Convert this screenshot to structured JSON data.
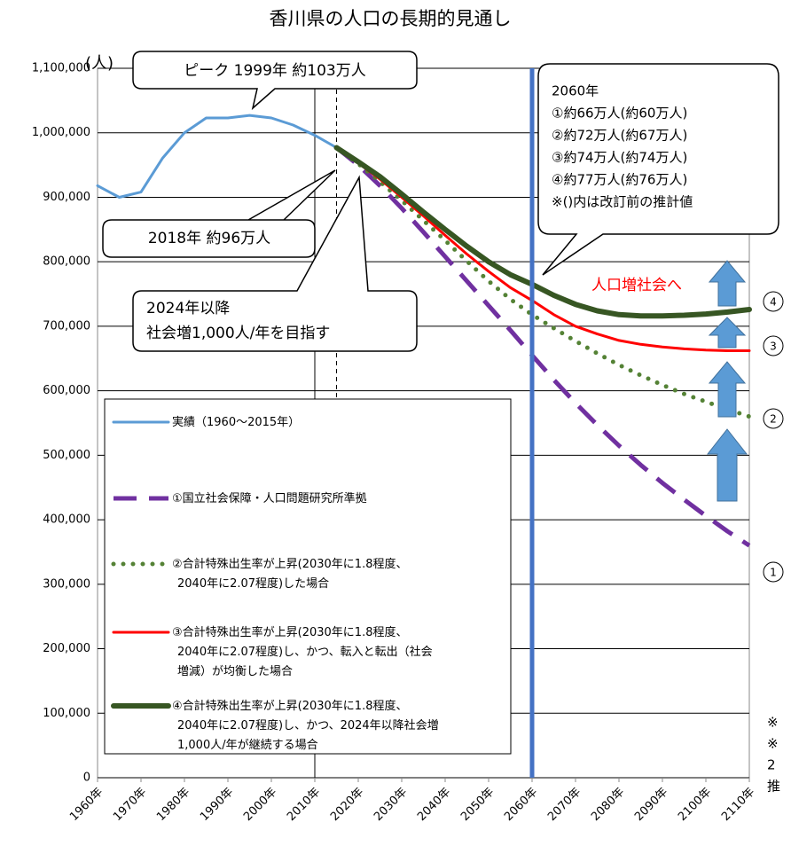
{
  "chart_data": {
    "type": "line",
    "title": "香川県の人口の長期的見通し",
    "y_unit": "(人)",
    "x": [
      1960,
      1965,
      1970,
      1975,
      1980,
      1985,
      1990,
      1995,
      2000,
      2005,
      2010,
      2015,
      2020,
      2025,
      2030,
      2035,
      2040,
      2045,
      2050,
      2055,
      2060,
      2065,
      2070,
      2075,
      2080,
      2085,
      2090,
      2095,
      2100,
      2105,
      2110
    ],
    "xlim": [
      1960,
      2110
    ],
    "xticks": [
      {
        "value": 1960,
        "label": "1960年"
      },
      {
        "value": 1970,
        "label": "1970年"
      },
      {
        "value": 1980,
        "label": "1980年"
      },
      {
        "value": 1990,
        "label": "1990年"
      },
      {
        "value": 2000,
        "label": "2000年"
      },
      {
        "value": 2010,
        "label": "2010年"
      },
      {
        "value": 2020,
        "label": "2020年"
      },
      {
        "value": 2030,
        "label": "2030年"
      },
      {
        "value": 2040,
        "label": "2040年"
      },
      {
        "value": 2050,
        "label": "2050年"
      },
      {
        "value": 2060,
        "label": "2060年"
      },
      {
        "value": 2070,
        "label": "2070年"
      },
      {
        "value": 2080,
        "label": "2080年"
      },
      {
        "value": 2090,
        "label": "2090年"
      },
      {
        "value": 2100,
        "label": "2100年"
      },
      {
        "value": 2110,
        "label": "2110年"
      }
    ],
    "ylim": [
      0,
      1100000
    ],
    "yticks": [
      0,
      {
        "value": 100000,
        "label": "100,000"
      },
      {
        "value": 200000,
        "label": "200,000"
      },
      {
        "value": 300000,
        "label": "300,000"
      },
      {
        "value": 400000,
        "label": "400,000"
      },
      {
        "value": 500000,
        "label": "500,000"
      },
      {
        "value": 600000,
        "label": "600,000"
      },
      {
        "value": 700000,
        "label": "700,000"
      },
      {
        "value": 800000,
        "label": "800,000"
      },
      {
        "value": 900000,
        "label": "900,000"
      },
      {
        "value": 1000000,
        "label": "1,000,000"
      },
      {
        "value": 1100000,
        "label": "1,100,000"
      }
    ],
    "grid": true,
    "vertical_grid_x": [
      2010
    ],
    "dashed_marker_x": 2015,
    "highlight_x": 2060,
    "highlight_color": "#4472c4",
    "series": [
      {
        "name": "実績（1960～2015年）",
        "color": "#5b9bd5",
        "style": "solid",
        "width": 3,
        "values": [
          918000,
          900000,
          908000,
          961000,
          1000000,
          1023000,
          1023000,
          1027000,
          1023000,
          1012000,
          996000,
          977000,
          null,
          null,
          null,
          null,
          null,
          null,
          null,
          null,
          null,
          null,
          null,
          null,
          null,
          null,
          null,
          null,
          null,
          null,
          null
        ]
      },
      {
        "name": "①国立社会保障・人口問題研究所準拠",
        "color": "#7030a0",
        "style": "dashed",
        "width": 5,
        "values": [
          null,
          null,
          null,
          null,
          null,
          null,
          null,
          null,
          null,
          null,
          null,
          977000,
          950000,
          918000,
          883000,
          846000,
          808000,
          770000,
          732000,
          694000,
          655000,
          617000,
          581000,
          547000,
          515000,
          485000,
          457000,
          431000,
          406000,
          382000,
          360000
        ]
      },
      {
        "name": "②合計特殊出生率が上昇(2030年に1.8程度、\n2040年に2.07程度)した場合",
        "color": "#548235",
        "style": "dotted",
        "width": 5,
        "values": [
          null,
          null,
          null,
          null,
          null,
          null,
          null,
          null,
          null,
          null,
          null,
          977000,
          952000,
          924000,
          895000,
          864000,
          833000,
          801000,
          770000,
          742000,
          718000,
          697000,
          677000,
          658000,
          640000,
          624000,
          609000,
          595000,
          583000,
          571000,
          560000
        ]
      },
      {
        "name": "③合計特殊出生率が上昇(2030年に1.8程度、\n2040年に2.07程度)し、かつ、転入と転出（社会\n増減）が均衡した場合",
        "color": "#ff0000",
        "style": "solid",
        "width": 3,
        "values": [
          null,
          null,
          null,
          null,
          null,
          null,
          null,
          null,
          null,
          null,
          null,
          977000,
          953000,
          928000,
          900000,
          871000,
          841000,
          812000,
          785000,
          760000,
          740000,
          718000,
          700000,
          688000,
          678000,
          672000,
          668000,
          665000,
          663000,
          662000,
          662000
        ]
      },
      {
        "name": "④合計特殊出生率が上昇(2030年に1.8程度、\n2040年に2.07程度)し、かつ、2024年以降社会増\n1,000人/年が継続する場合",
        "color": "#375623",
        "style": "solid",
        "width": 6,
        "values": [
          null,
          null,
          null,
          null,
          null,
          null,
          null,
          null,
          null,
          null,
          null,
          977000,
          955000,
          932000,
          905000,
          877000,
          850000,
          824000,
          800000,
          780000,
          765000,
          748000,
          734000,
          724000,
          718000,
          716000,
          716000,
          717000,
          719000,
          722000,
          726000
        ]
      }
    ],
    "annotations": {
      "peak": "ピーク  1999年  約103万人",
      "current": "2018年  約96万人",
      "target": [
        "2024年以降",
        "社会増1,000人/年を目指す"
      ],
      "year_2060": [
        "2060年",
        "①約66万人(約60万人)",
        "②約72万人(約67万人)",
        "③約74万人(約74万人)",
        "④約77万人(約76万人)",
        "※()内は改訂前の推計値"
      ],
      "growth": "人口増社会へ",
      "markers": [
        "4",
        "3",
        "2",
        "1"
      ],
      "cut_notes": [
        "※",
        "※",
        "2",
        "推"
      ]
    }
  }
}
